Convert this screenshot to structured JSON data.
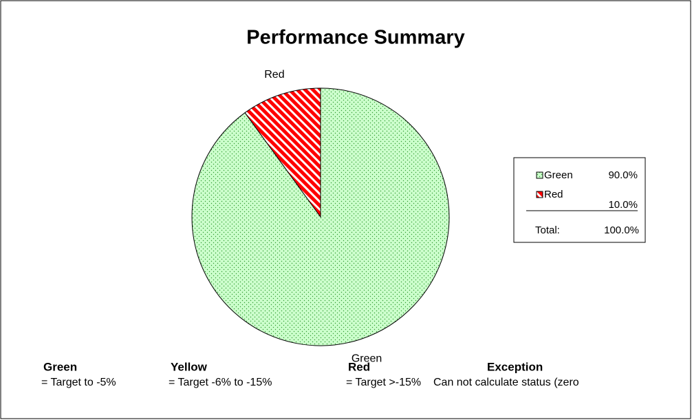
{
  "chart_data": {
    "type": "pie",
    "title": "Performance Summary",
    "categories": [
      "Green",
      "Red"
    ],
    "values": [
      90,
      10
    ],
    "value_labels": [
      "90.0%",
      "10.0%"
    ],
    "colors": [
      "#ccffcc",
      "#ff0000"
    ],
    "legend": "right",
    "total": {
      "label": "Total:",
      "value": 100,
      "value_label": "100.0%"
    },
    "notes": [
      {
        "name": "Green",
        "text": "= Target to -5%"
      },
      {
        "name": "Yellow",
        "text": "= Target -6% to -15%"
      },
      {
        "name": "Red",
        "text": "= Target >-15%"
      },
      {
        "name": "Exception",
        "text": "Can not  calculate status (zero"
      }
    ]
  }
}
